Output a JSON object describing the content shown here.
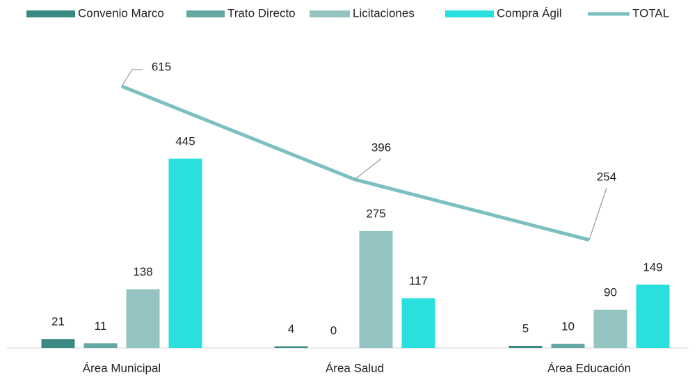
{
  "chart_data": {
    "type": "bar_line",
    "categories": [
      "Área Municipal",
      "Área Salud",
      "Área Educación"
    ],
    "series": [
      {
        "name": "Convenio Marco",
        "color": "#3a8a83",
        "values": [
          21,
          4,
          5
        ]
      },
      {
        "name": "Trato Directo",
        "color": "#65a8a3",
        "values": [
          11,
          0,
          10
        ]
      },
      {
        "name": "Licitaciones",
        "color": "#93c4c2",
        "values": [
          138,
          275,
          90
        ]
      },
      {
        "name": "Compra Ágil",
        "color": "#2ae0dc",
        "values": [
          445,
          117,
          149
        ]
      },
      {
        "name": "TOTAL",
        "type": "line",
        "color": "#7bbfc0",
        "values": [
          615,
          396,
          254
        ]
      }
    ]
  }
}
